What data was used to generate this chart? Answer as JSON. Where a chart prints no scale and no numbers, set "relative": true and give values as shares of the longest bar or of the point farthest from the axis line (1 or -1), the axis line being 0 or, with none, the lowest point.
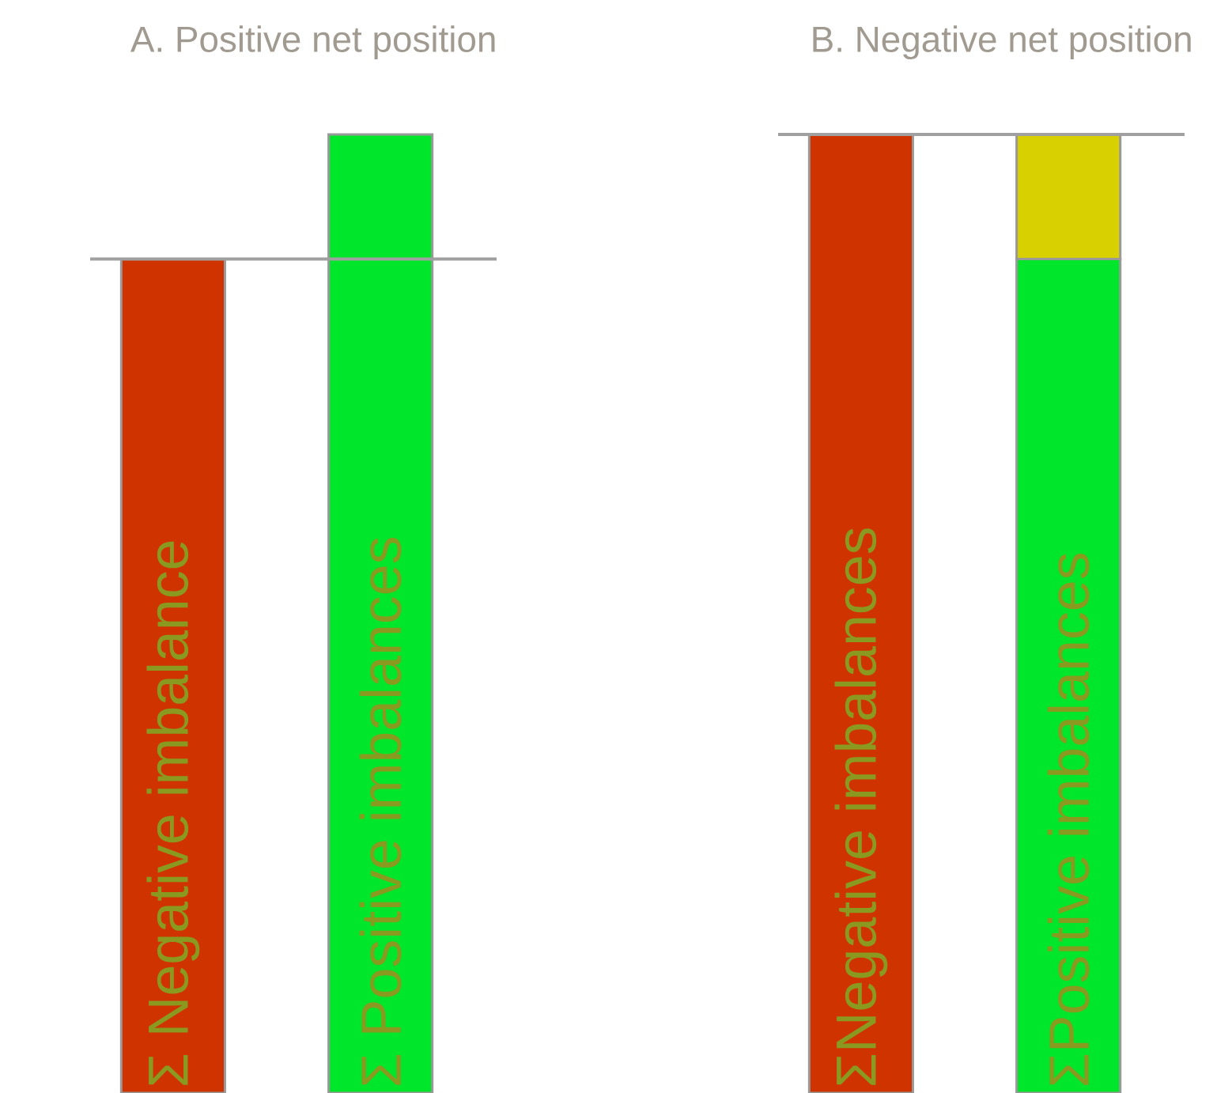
{
  "chart_data": [
    {
      "type": "bar",
      "title": "A. Positive net position",
      "relative": true,
      "stacked": true,
      "categories": [
        "Σ Negative imbalance",
        "Σ Positive imbalances"
      ],
      "series": [
        {
          "colors": [
            "#cf3300",
            "#00e62a"
          ],
          "values": [
            0.87,
            0.87
          ]
        },
        {
          "color": "#00e62a",
          "values": [
            null,
            0.13
          ]
        }
      ],
      "ref_lines": [
        {
          "axis": "y",
          "value": 0.87,
          "color": "#a0a0a0"
        }
      ]
    },
    {
      "type": "bar",
      "title": "B. Negative net position",
      "relative": true,
      "stacked": true,
      "categories": [
        "ΣNegative imbalances",
        "ΣPositive imbalances"
      ],
      "series": [
        {
          "colors": [
            "#cf3300",
            "#00e62a"
          ],
          "values": [
            1.0,
            0.87
          ]
        },
        {
          "color": "#d8d000",
          "values": [
            null,
            0.13
          ]
        }
      ],
      "ref_lines": [
        {
          "axis": "y",
          "value": 1.0,
          "color": "#a0a0a0"
        }
      ]
    }
  ]
}
